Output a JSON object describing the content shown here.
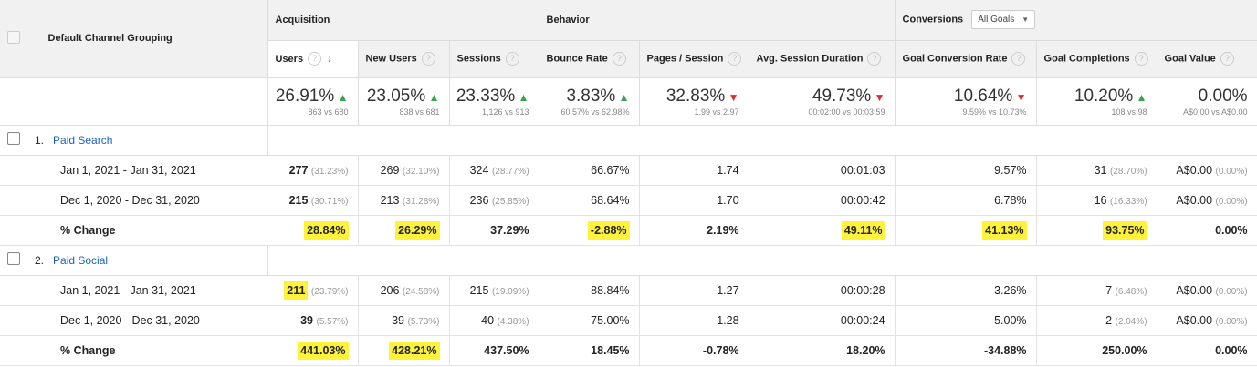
{
  "header": {
    "dimension_label": "Default Channel Grouping",
    "groups": {
      "acquisition": "Acquisition",
      "behavior": "Behavior",
      "conversions": "Conversions"
    },
    "goal_selector": "All Goals",
    "columns": [
      "Users",
      "New Users",
      "Sessions",
      "Bounce Rate",
      "Pages / Session",
      "Avg. Session Duration",
      "Goal Conversion Rate",
      "Goal Completions",
      "Goal Value"
    ]
  },
  "summary": [
    {
      "value": "26.91%",
      "trend": "up",
      "compare": "863 vs 680"
    },
    {
      "value": "23.05%",
      "trend": "up",
      "compare": "838 vs 681"
    },
    {
      "value": "23.33%",
      "trend": "up",
      "compare": "1,126 vs 913"
    },
    {
      "value": "3.83%",
      "trend": "up",
      "compare": "60.57% vs 62.98%"
    },
    {
      "value": "32.83%",
      "trend": "down",
      "compare": "1.99 vs 2.97"
    },
    {
      "value": "49.73%",
      "trend": "down",
      "compare": "00:02:00 vs 00:03:59"
    },
    {
      "value": "10.64%",
      "trend": "down",
      "compare": "9.59% vs 10.73%"
    },
    {
      "value": "10.20%",
      "trend": "up",
      "compare": "108 vs 98"
    },
    {
      "value": "0.00%",
      "trend": "none",
      "compare": "A$0.00 vs A$0.00"
    }
  ],
  "channels": [
    {
      "index": "1.",
      "name": "Paid Search",
      "rows": [
        {
          "label": "Jan 1, 2021 - Jan 31, 2021",
          "cells": [
            {
              "v": "277",
              "p": "(31.23%)"
            },
            {
              "v": "269",
              "p": "(32.10%)"
            },
            {
              "v": "324",
              "p": "(28.77%)"
            },
            {
              "v": "66.67%",
              "p": ""
            },
            {
              "v": "1.74",
              "p": ""
            },
            {
              "v": "00:01:03",
              "p": ""
            },
            {
              "v": "9.57%",
              "p": ""
            },
            {
              "v": "31",
              "p": "(28.70%)"
            },
            {
              "v": "A$0.00",
              "p": "(0.00%)"
            }
          ]
        },
        {
          "label": "Dec 1, 2020 - Dec 31, 2020",
          "cells": [
            {
              "v": "215",
              "p": "(30.71%)"
            },
            {
              "v": "213",
              "p": "(31.28%)"
            },
            {
              "v": "236",
              "p": "(25.85%)"
            },
            {
              "v": "68.64%",
              "p": ""
            },
            {
              "v": "1.70",
              "p": ""
            },
            {
              "v": "00:00:42",
              "p": ""
            },
            {
              "v": "6.78%",
              "p": ""
            },
            {
              "v": "16",
              "p": "(16.33%)"
            },
            {
              "v": "A$0.00",
              "p": "(0.00%)"
            }
          ]
        },
        {
          "label": "% Change",
          "cells": [
            {
              "v": "28.84%",
              "p": ""
            },
            {
              "v": "26.29%",
              "p": ""
            },
            {
              "v": "37.29%",
              "p": ""
            },
            {
              "v": "-2.88%",
              "p": ""
            },
            {
              "v": "2.19%",
              "p": ""
            },
            {
              "v": "49.11%",
              "p": ""
            },
            {
              "v": "41.13%",
              "p": ""
            },
            {
              "v": "93.75%",
              "p": ""
            },
            {
              "v": "0.00%",
              "p": ""
            }
          ]
        }
      ]
    },
    {
      "index": "2.",
      "name": "Paid Social",
      "rows": [
        {
          "label": "Jan 1, 2021 - Jan 31, 2021",
          "cells": [
            {
              "v": "211",
              "p": "(23.79%)"
            },
            {
              "v": "206",
              "p": "(24.58%)"
            },
            {
              "v": "215",
              "p": "(19.09%)"
            },
            {
              "v": "88.84%",
              "p": ""
            },
            {
              "v": "1.27",
              "p": ""
            },
            {
              "v": "00:00:28",
              "p": ""
            },
            {
              "v": "3.26%",
              "p": ""
            },
            {
              "v": "7",
              "p": "(6.48%)"
            },
            {
              "v": "A$0.00",
              "p": "(0.00%)"
            }
          ]
        },
        {
          "label": "Dec 1, 2020 - Dec 31, 2020",
          "cells": [
            {
              "v": "39",
              "p": "(5.57%)"
            },
            {
              "v": "39",
              "p": "(5.73%)"
            },
            {
              "v": "40",
              "p": "(4.38%)"
            },
            {
              "v": "75.00%",
              "p": ""
            },
            {
              "v": "1.28",
              "p": ""
            },
            {
              "v": "00:00:24",
              "p": ""
            },
            {
              "v": "5.00%",
              "p": ""
            },
            {
              "v": "2",
              "p": "(2.04%)"
            },
            {
              "v": "A$0.00",
              "p": "(0.00%)"
            }
          ]
        },
        {
          "label": "% Change",
          "cells": [
            {
              "v": "441.03%",
              "p": ""
            },
            {
              "v": "428.21%",
              "p": ""
            },
            {
              "v": "437.50%",
              "p": ""
            },
            {
              "v": "18.45%",
              "p": ""
            },
            {
              "v": "-0.78%",
              "p": ""
            },
            {
              "v": "18.20%",
              "p": ""
            },
            {
              "v": "-34.88%",
              "p": ""
            },
            {
              "v": "250.00%",
              "p": ""
            },
            {
              "v": "0.00%",
              "p": ""
            }
          ]
        }
      ]
    }
  ],
  "highlight_color": "#fff23b",
  "link_color": "#1a63c4"
}
